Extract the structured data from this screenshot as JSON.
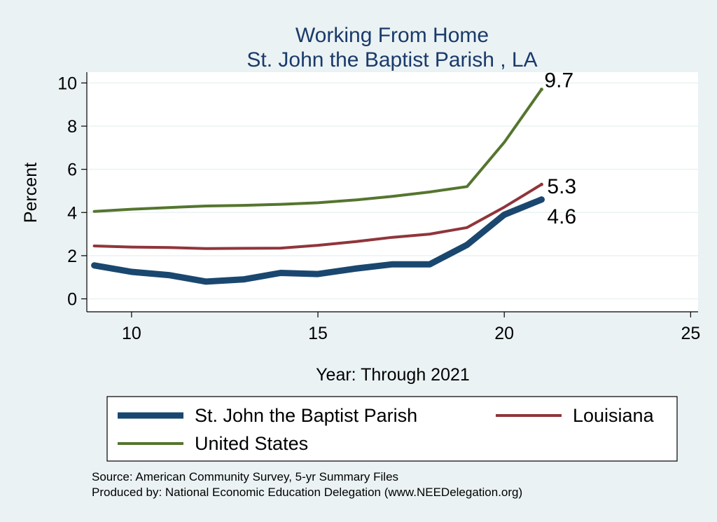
{
  "chart_data": {
    "type": "line",
    "title": "Working From Home",
    "subtitle": "St. John the Baptist Parish , LA",
    "xlabel": "Year: Through 2021",
    "ylabel": "Percent",
    "xlim": [
      8.8,
      25.2
    ],
    "ylim": [
      -0.6,
      10.5
    ],
    "xticks": [
      10,
      15,
      20,
      25
    ],
    "yticks": [
      0,
      2,
      4,
      6,
      8,
      10
    ],
    "grid": true,
    "legend_position": "bottom",
    "series": [
      {
        "name": "St. John the Baptist Parish",
        "color": "#1a476f",
        "x": [
          9,
          10,
          11,
          12,
          13,
          14,
          15,
          16,
          17,
          18,
          19,
          20,
          21
        ],
        "y": [
          1.55,
          1.25,
          1.1,
          0.8,
          0.9,
          1.2,
          1.15,
          1.4,
          1.6,
          1.6,
          2.5,
          3.9,
          4.6
        ],
        "end_label": "4.6"
      },
      {
        "name": "Louisiana",
        "color": "#90353b",
        "x": [
          9,
          10,
          11,
          12,
          13,
          14,
          15,
          16,
          17,
          18,
          19,
          20,
          21
        ],
        "y": [
          2.45,
          2.4,
          2.38,
          2.33,
          2.34,
          2.35,
          2.48,
          2.65,
          2.85,
          3.0,
          3.3,
          4.25,
          5.3
        ],
        "end_label": "5.3"
      },
      {
        "name": "United States",
        "color": "#55752f",
        "x": [
          9,
          10,
          11,
          12,
          13,
          14,
          15,
          16,
          17,
          18,
          19,
          20,
          21
        ],
        "y": [
          4.05,
          4.15,
          4.23,
          4.3,
          4.33,
          4.38,
          4.45,
          4.58,
          4.75,
          4.95,
          5.2,
          7.25,
          9.7
        ],
        "end_label": "9.7"
      }
    ]
  },
  "notes": {
    "source": "Source: American Community Survey, 5-yr Summary Files",
    "produced": "Produced by: National Economic Education Delegation (www.NEEDelegation.org)"
  }
}
